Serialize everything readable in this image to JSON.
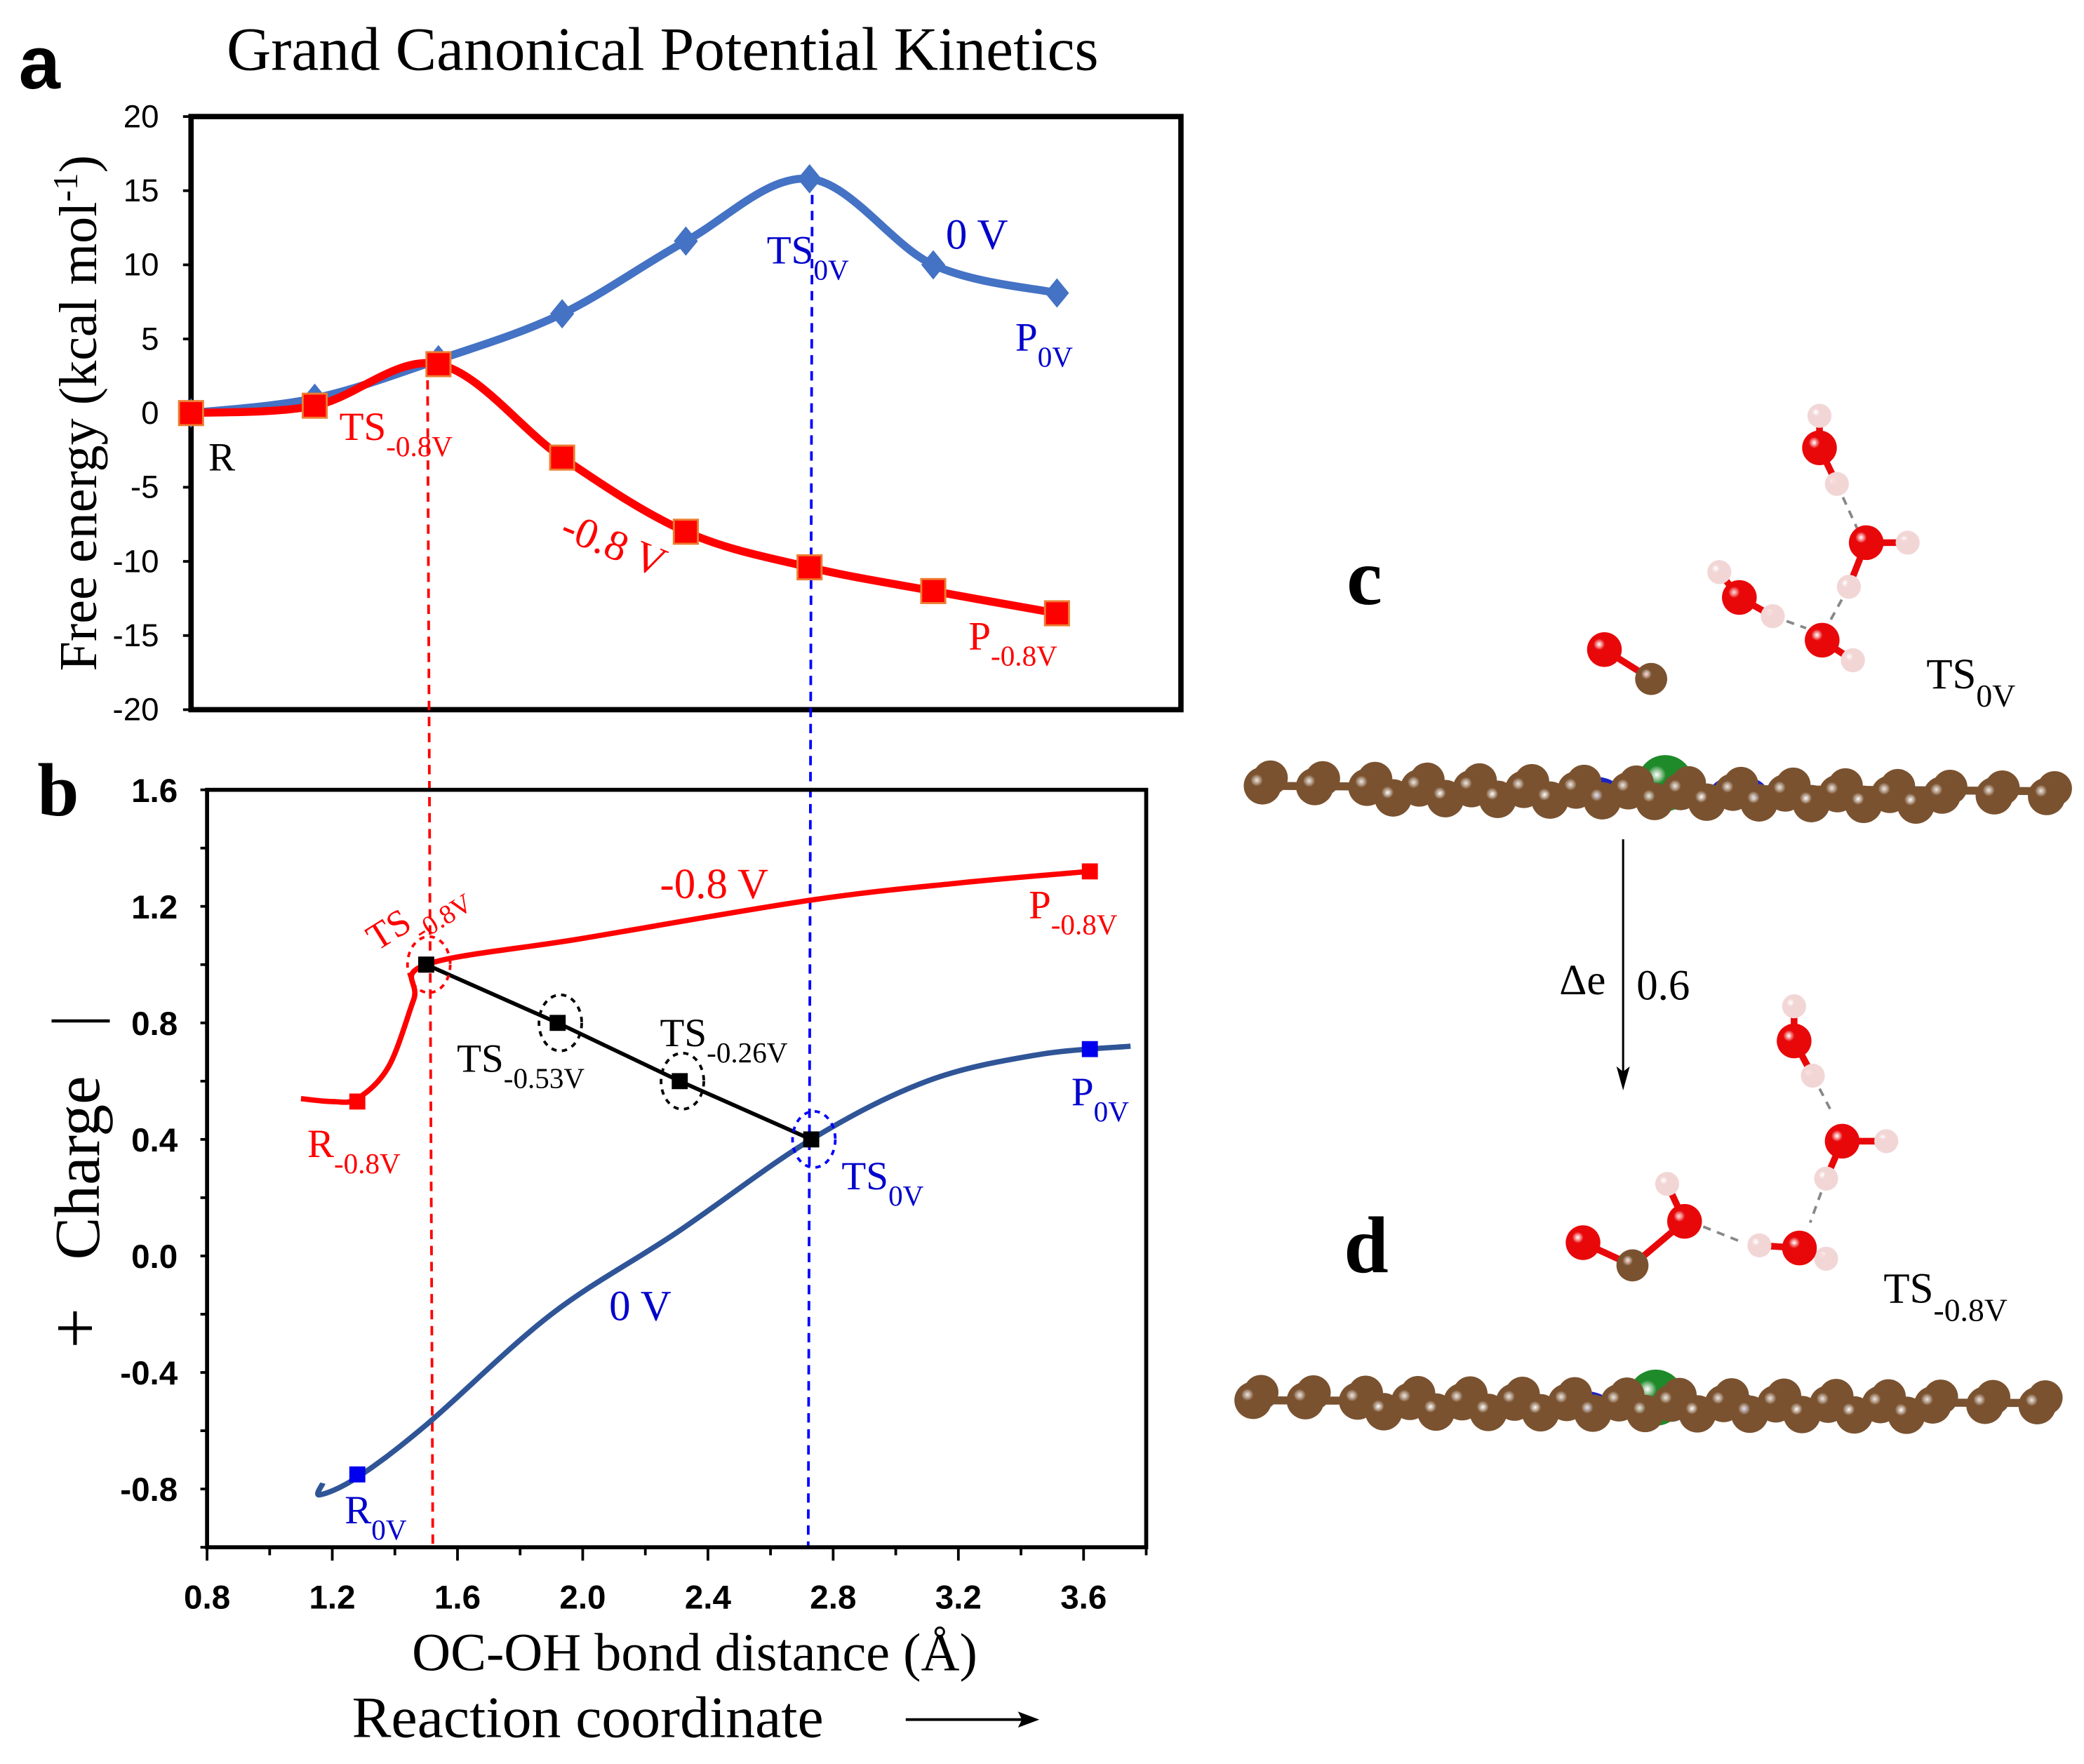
{
  "figure": {
    "panel_a_letter": "a",
    "panel_b_letter": "b",
    "panel_c_letter": "c",
    "panel_d_letter": "d",
    "reaction_coordinate_label": "Reaction coordinate",
    "delta_e_label": "Δe",
    "delta_e_value": "0.6",
    "structure_c_label": {
      "main": "TS",
      "sub": "0V"
    },
    "structure_d_label": {
      "main": "TS",
      "sub": "-0.8V"
    },
    "atom_colors": {
      "carbon": "#7a5230",
      "oxygen": "#e8080a",
      "hydrogen": "#f2d6d6",
      "nitrogen": "#1b22c8",
      "metal": "#1f8a2a"
    }
  },
  "chart_data": [
    {
      "type": "line",
      "title": "Grand Canonical Potential Kinetics",
      "xlabel": "",
      "ylabel": "Free energy  (kcal mol-1)",
      "ylabel_parts": {
        "main": "Free energy  (kcal mol",
        "sup": "-1",
        "end": ")"
      },
      "ylim": [
        -20,
        20
      ],
      "yticks": [
        "20",
        "15",
        "10",
        "5",
        "0",
        "-5",
        "-10",
        "-15",
        "-20"
      ],
      "ytick_values": [
        20,
        15,
        10,
        5,
        0,
        -5,
        -10,
        -15,
        -20
      ],
      "x_points": [
        0,
        1,
        2,
        3,
        4,
        5,
        6,
        7
      ],
      "series": [
        {
          "name": "0 V",
          "color": "#4472c4",
          "marker": "diamond",
          "values": [
            0,
            1.0,
            3.6,
            6.7,
            11.6,
            15.8,
            10.0,
            8.1
          ]
        },
        {
          "name": "-0.8 V",
          "color": "#ff0000",
          "marker": "square",
          "values": [
            0,
            0.5,
            3.3,
            -3.0,
            -8.0,
            -10.4,
            -12.0,
            -13.5
          ]
        }
      ],
      "annotations": [
        {
          "main": "R",
          "sub": "",
          "color": "#000000"
        },
        {
          "main": "TS",
          "sub": "-0.8V",
          "color": "#ff0000"
        },
        {
          "main": "TS",
          "sub": "0V",
          "color": "#0000cc"
        },
        {
          "main": "P",
          "sub": "0V",
          "color": "#0000cc"
        },
        {
          "main": "P",
          "sub": "-0.8V",
          "color": "#ff0000"
        }
      ],
      "grid": false
    },
    {
      "type": "line",
      "xlabel": "OC-OH bond distance (Å)",
      "ylabel": "+ Charge |",
      "ylabel_parts": {
        "plus": "+",
        "main": "Charge",
        "bar": "|"
      },
      "xlim": [
        0.8,
        3.8
      ],
      "ylim": [
        -1.0,
        1.6
      ],
      "xticks": [
        "0.8",
        "1.2",
        "1.6",
        "2.0",
        "2.4",
        "2.8",
        "3.2",
        "3.6"
      ],
      "xtick_values": [
        0.8,
        1.2,
        1.6,
        2.0,
        2.4,
        2.8,
        3.2,
        3.6
      ],
      "yticks": [
        "1.6",
        "1.2",
        "0.8",
        "0.4",
        "0.0",
        "-0.4",
        "-0.8"
      ],
      "ytick_values": [
        1.6,
        1.2,
        0.8,
        0.4,
        0.0,
        -0.4,
        -0.8
      ],
      "series": [
        {
          "name": "-0.8 V",
          "color": "#ff0000",
          "curve": [
            [
              1.1,
              0.54
            ],
            [
              1.2,
              0.53
            ],
            [
              1.28,
              0.54
            ],
            [
              1.38,
              0.65
            ],
            [
              1.46,
              0.88
            ],
            [
              1.5,
              1.0
            ],
            [
              2.0,
              1.09
            ],
            [
              2.72,
              1.22
            ],
            [
              3.2,
              1.28
            ],
            [
              3.62,
              1.32
            ]
          ],
          "markers": [
            [
              1.28,
              0.53
            ],
            [
              1.5,
              1.0
            ],
            [
              3.62,
              1.32
            ]
          ]
        },
        {
          "name": "0 V",
          "color": "#2f5597",
          "curve": [
            [
              1.17,
              -0.78
            ],
            [
              1.16,
              -0.82
            ],
            [
              1.28,
              -0.76
            ],
            [
              1.5,
              -0.58
            ],
            [
              1.9,
              -0.2
            ],
            [
              2.3,
              0.08
            ],
            [
              2.73,
              0.4
            ],
            [
              3.1,
              0.6
            ],
            [
              3.45,
              0.69
            ],
            [
              3.75,
              0.72
            ]
          ],
          "markers": [
            [
              1.28,
              -0.75
            ],
            [
              3.62,
              0.71
            ]
          ]
        },
        {
          "name": "",
          "color": "#000000",
          "curve": [
            [
              1.5,
              1.0
            ],
            [
              1.92,
              0.8
            ],
            [
              2.31,
              0.6
            ],
            [
              2.73,
              0.4
            ]
          ],
          "markers": [
            [
              1.5,
              1.0
            ],
            [
              1.92,
              0.8
            ],
            [
              2.31,
              0.6
            ],
            [
              2.73,
              0.4
            ]
          ]
        }
      ],
      "annotations": [
        {
          "main": "TS",
          "sub": "-0.8V",
          "color": "#ff0000"
        },
        {
          "main": "-0.8 V",
          "sub": "",
          "color": "#ff0000"
        },
        {
          "main": "P",
          "sub": "-0.8V",
          "color": "#ff0000"
        },
        {
          "main": "R",
          "sub": "-0.8V",
          "color": "#ff0000"
        },
        {
          "main": "TS",
          "sub": "-0.53V",
          "color": "#000000"
        },
        {
          "main": "TS",
          "sub": "-0.26V",
          "color": "#000000"
        },
        {
          "main": "P",
          "sub": "0V",
          "color": "#0000cc"
        },
        {
          "main": "TS",
          "sub": "0V",
          "color": "#0000cc"
        },
        {
          "main": "0 V",
          "sub": "",
          "color": "#0000cc"
        },
        {
          "main": "R",
          "sub": "0V",
          "color": "#0000cc"
        }
      ],
      "reference_lines_x": [
        1.51,
        2.73
      ],
      "grid": false
    }
  ]
}
